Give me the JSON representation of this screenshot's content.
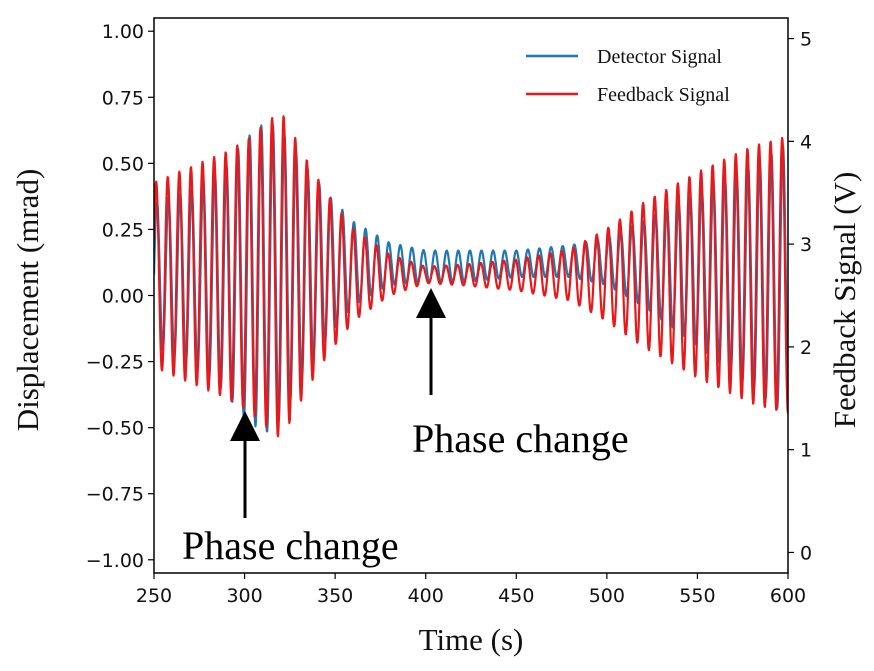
{
  "chart_data": {
    "type": "line",
    "xlabel": "Time (s)",
    "ylabel": "Displacement (mrad)",
    "y2label": "Feedback Signal (V)",
    "xlim": [
      250,
      600
    ],
    "ylim": [
      -1.05,
      1.05
    ],
    "y2lim": [
      -0.2,
      5.2
    ],
    "x_ticks": [
      250,
      300,
      350,
      400,
      450,
      500,
      550,
      600
    ],
    "y_ticks": [
      -1.0,
      -0.75,
      -0.5,
      -0.25,
      0.0,
      0.25,
      0.5,
      0.75,
      1.0
    ],
    "y_tick_labels": [
      "−1.00",
      "−0.75",
      "−0.50",
      "−0.25",
      "0.00",
      "0.25",
      "0.50",
      "0.75",
      "1.00"
    ],
    "y2_ticks": [
      0,
      1,
      2,
      3,
      4,
      5
    ],
    "legend": {
      "position": "top-right"
    },
    "grid": false,
    "series": [
      {
        "name": "Detector Signal",
        "color": "#1f77b4",
        "axis": "left",
        "oscillation_period_s": 6.4,
        "envelope": {
          "x": [
            250,
            270,
            290,
            300,
            312,
            320,
            335,
            345,
            360,
            380,
            400,
            420,
            450,
            480,
            500,
            520,
            550,
            580,
            600
          ],
          "center": [
            0.08,
            0.07,
            0.06,
            0.06,
            0.07,
            0.08,
            0.1,
            0.11,
            0.12,
            0.12,
            0.11,
            0.11,
            0.12,
            0.13,
            0.13,
            0.12,
            0.1,
            0.07,
            0.06
          ],
          "amplitude": [
            0.27,
            0.33,
            0.43,
            0.53,
            0.59,
            0.55,
            0.38,
            0.28,
            0.16,
            0.08,
            0.06,
            0.06,
            0.05,
            0.06,
            0.09,
            0.16,
            0.29,
            0.42,
            0.52
          ]
        }
      },
      {
        "name": "Feedback Signal",
        "color": "#e8191b",
        "axis": "right",
        "oscillation_period_s": 6.4,
        "envelope": {
          "x": [
            250,
            270,
            290,
            300,
            312,
            320,
            335,
            345,
            360,
            380,
            400,
            420,
            450,
            480,
            500,
            520,
            550,
            580,
            600
          ],
          "center": [
            2.7,
            2.7,
            2.7,
            2.7,
            2.7,
            2.7,
            2.7,
            2.7,
            2.7,
            2.7,
            2.7,
            2.7,
            2.7,
            2.7,
            2.7,
            2.7,
            2.7,
            2.7,
            2.7
          ],
          "amplitude": [
            0.9,
            1.05,
            1.2,
            1.3,
            1.48,
            1.6,
            1.1,
            0.8,
            0.45,
            0.2,
            0.08,
            0.1,
            0.15,
            0.25,
            0.45,
            0.7,
            1.0,
            1.25,
            1.35
          ]
        }
      }
    ],
    "annotations": [
      {
        "text": "Phase change",
        "x": 302,
        "y": -0.52
      },
      {
        "text": "Phase change",
        "x": 404,
        "y": -0.02
      }
    ]
  }
}
